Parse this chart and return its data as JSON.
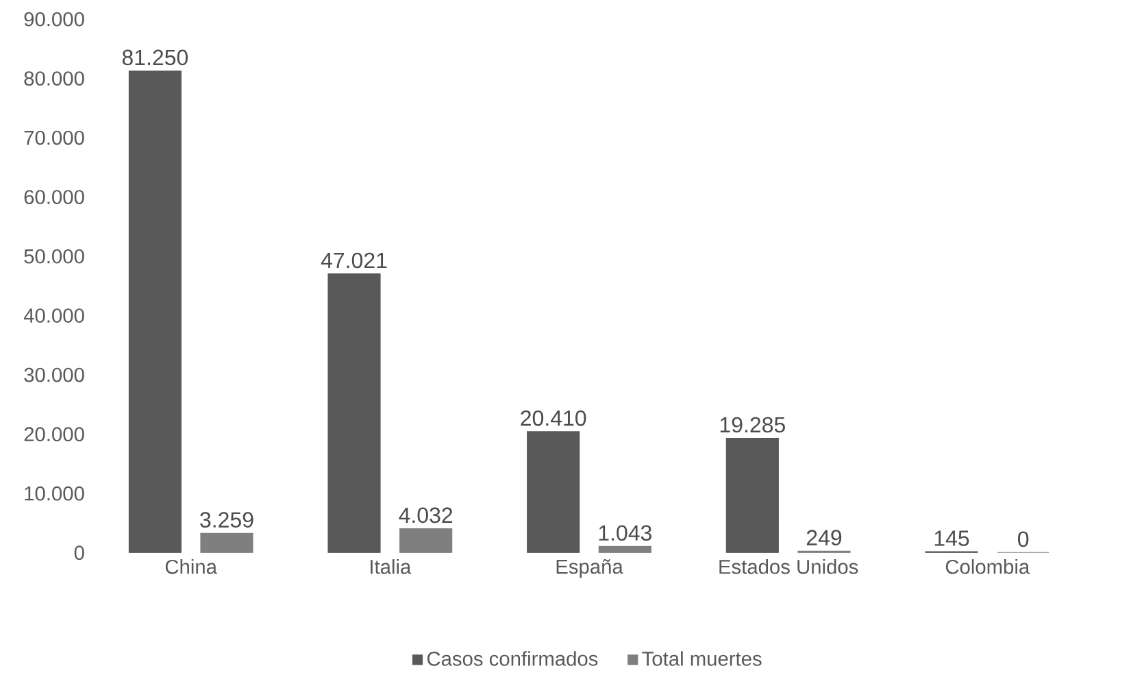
{
  "chart_data": {
    "type": "bar",
    "categories": [
      "China",
      "Italia",
      "España",
      "Estados Unidos",
      "Colombia"
    ],
    "series": [
      {
        "name": "Casos confirmados",
        "color": "#595959",
        "values": [
          81250,
          47021,
          20410,
          19285,
          145
        ],
        "value_labels": [
          "81.250",
          "47.021",
          "20.410",
          "19.285",
          "145"
        ]
      },
      {
        "name": "Total muertes",
        "color": "#7f7f7f",
        "values": [
          3259,
          4032,
          1043,
          249,
          0
        ],
        "value_labels": [
          "3.259",
          "4.032",
          "1.043",
          "249",
          "0"
        ]
      }
    ],
    "ylim": [
      0,
      90000
    ],
    "yticks": [
      0,
      {
        "value": 10000,
        "label": "10.000"
      },
      {
        "value": 20000,
        "label": "20.000"
      },
      {
        "value": 30000,
        "label": "30.000"
      },
      {
        "value": 40000,
        "label": "40.000"
      },
      {
        "value": 50000,
        "label": "50.000"
      },
      {
        "value": 60000,
        "label": "60.000"
      },
      {
        "value": 70000,
        "label": "70.000"
      },
      {
        "value": 80000,
        "label": "80.000"
      },
      {
        "value": 90000,
        "label": "90.000"
      }
    ],
    "grid": false,
    "legend": "bottom"
  }
}
